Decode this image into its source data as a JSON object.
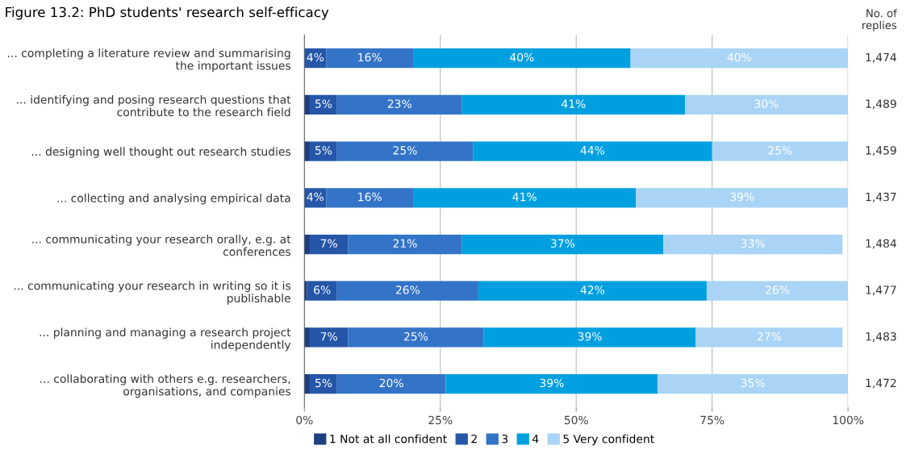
{
  "chart_data": {
    "type": "bar",
    "orientation": "horizontal",
    "stacked": true,
    "title": "Figure 13.2: PhD students' research self-efficacy",
    "categories": [
      "... completing a literature review and summarising the important issues",
      "... identifying and posing research questions that contribute to the research field",
      "... designing well thought out research studies",
      "... collecting and analysing empirical data",
      "... communicating your research orally, e.g. at conferences",
      "... communicating your research in writing so it is publishable",
      "... planning and managing a research project independently",
      "... collaborating with others e.g. researchers, organisations, and companies"
    ],
    "series": [
      {
        "name": "1 Not at all confident",
        "color": "#1f3f80",
        "values": [
          0,
          1,
          1,
          0,
          1,
          0.5,
          1,
          1
        ],
        "value_labels": [
          null,
          null,
          null,
          null,
          null,
          null,
          null,
          null
        ]
      },
      {
        "name": "2",
        "color": "#2556a8",
        "values": [
          4,
          5,
          5,
          4,
          7,
          5.5,
          7,
          5
        ],
        "value_labels": [
          "4%",
          "5%",
          "5%",
          "4%",
          "7%",
          "6%",
          "7%",
          "5%"
        ]
      },
      {
        "name": "3",
        "color": "#3474c8",
        "values": [
          16,
          23,
          25,
          16,
          21,
          26,
          25,
          20
        ],
        "value_labels": [
          "16%",
          "23%",
          "25%",
          "16%",
          "21%",
          "26%",
          "25%",
          "20%"
        ]
      },
      {
        "name": "4",
        "color": "#00a0e0",
        "values": [
          40,
          41,
          44,
          41,
          37,
          42,
          39,
          39
        ],
        "value_labels": [
          "40%",
          "41%",
          "44%",
          "41%",
          "37%",
          "42%",
          "39%",
          "39%"
        ]
      },
      {
        "name": "5 Very confident",
        "color": "#aad4f5",
        "values": [
          40,
          30,
          25,
          39,
          33,
          26,
          27,
          35
        ],
        "value_labels": [
          "40%",
          "30%",
          "25%",
          "39%",
          "33%",
          "26%",
          "27%",
          "35%"
        ]
      }
    ],
    "xlim": [
      0,
      100
    ],
    "xticks": [
      {
        "value": 0,
        "label": "0%"
      },
      {
        "value": 25,
        "label": "25%"
      },
      {
        "value": 50,
        "label": "50%"
      },
      {
        "value": 75,
        "label": "75%"
      },
      {
        "value": 100,
        "label": "100%"
      }
    ],
    "grid": "x",
    "legend": "bottom",
    "annotations": [
      "No. of\nreplies",
      "1,474",
      "1,489",
      "1,459",
      "1,437",
      "1,484",
      "1,477",
      "1,483",
      "1,472"
    ]
  }
}
